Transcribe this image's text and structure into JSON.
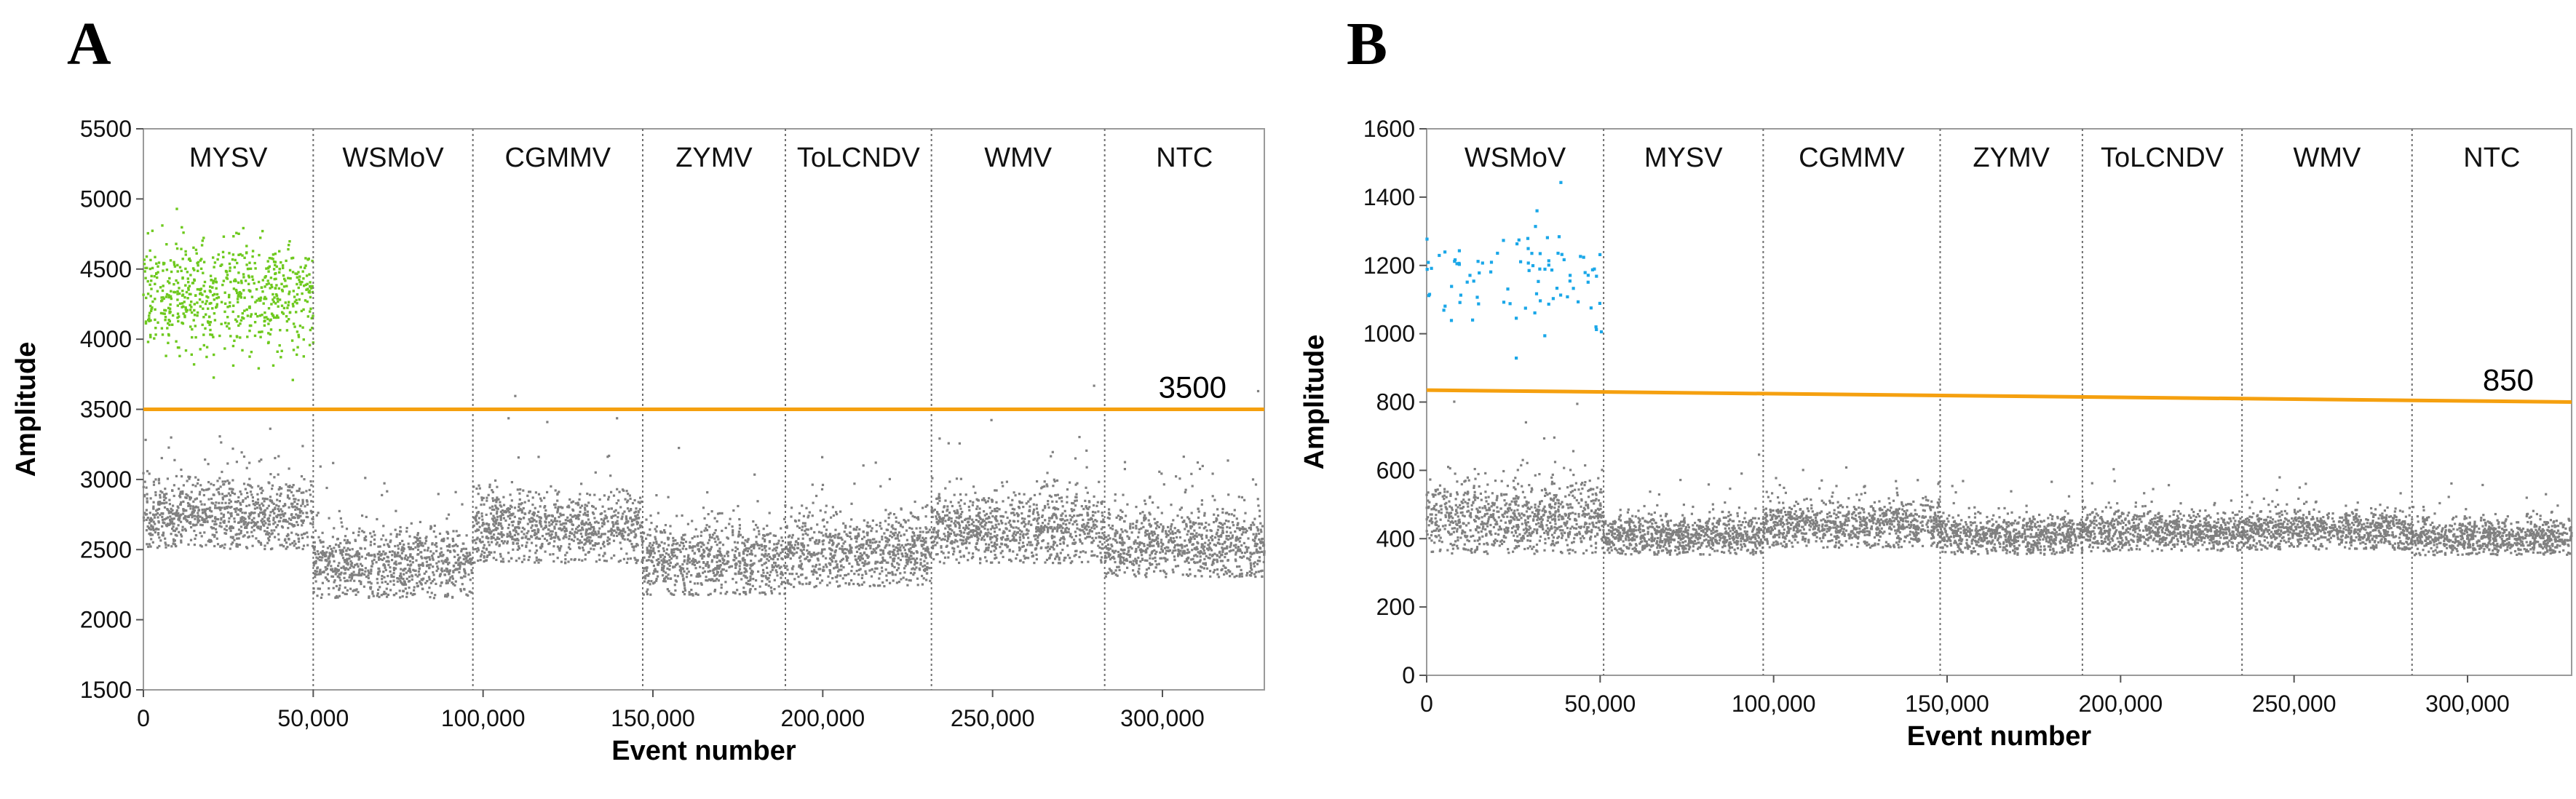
{
  "chart_data": [
    {
      "type": "scatter",
      "panel_label": "A",
      "xlabel": "Event number",
      "ylabel": "Amplitude",
      "xlim": [
        0,
        330000
      ],
      "ylim": [
        1500,
        5500
      ],
      "x_ticks": [
        0,
        50000,
        100000,
        150000,
        200000,
        250000,
        300000
      ],
      "x_tick_labels": [
        "0",
        "50,000",
        "100,000",
        "150,000",
        "200,000",
        "250,000",
        "300,000"
      ],
      "y_ticks": [
        1500,
        2000,
        2500,
        3000,
        3500,
        4000,
        4500,
        5000,
        5500
      ],
      "y_tick_labels": [
        "1500",
        "2000",
        "2500",
        "3000",
        "3500",
        "4000",
        "4500",
        "5000",
        "5500"
      ],
      "threshold": {
        "value": 3500,
        "label": "3500",
        "start": 3500,
        "end": 3500,
        "color": "#f5a00f"
      },
      "positive_color": "#6ec91e",
      "negative_color": "#808080",
      "samples": [
        {
          "name": "MYSV",
          "start": 0,
          "end": 50000,
          "negative_mean": 2750,
          "negative_spread": 130,
          "positive_mean": 4320,
          "positive_spread": 190,
          "positive_fraction": 0.45
        },
        {
          "name": "WSMoV",
          "start": 50000,
          "end": 97000,
          "negative_mean": 2400,
          "negative_spread": 130,
          "positive_mean": null
        },
        {
          "name": "CGMMV",
          "start": 97000,
          "end": 147000,
          "negative_mean": 2650,
          "negative_spread": 130,
          "positive_mean": null
        },
        {
          "name": "ZYMV",
          "start": 147000,
          "end": 189000,
          "negative_mean": 2420,
          "negative_spread": 130,
          "positive_mean": null
        },
        {
          "name": "ToLCNDV",
          "start": 189000,
          "end": 232000,
          "negative_mean": 2480,
          "negative_spread": 130,
          "positive_mean": null
        },
        {
          "name": "WMV",
          "start": 232000,
          "end": 283000,
          "negative_mean": 2650,
          "negative_spread": 130,
          "positive_mean": null
        },
        {
          "name": "NTC",
          "start": 283000,
          "end": 330000,
          "negative_mean": 2550,
          "negative_spread": 130,
          "positive_mean": null
        }
      ]
    },
    {
      "type": "scatter",
      "panel_label": "B",
      "xlabel": "Event number",
      "ylabel": "Amplitude",
      "xlim": [
        0,
        330000
      ],
      "ylim": [
        0,
        1600
      ],
      "x_ticks": [
        0,
        50000,
        100000,
        150000,
        200000,
        250000,
        300000
      ],
      "x_tick_labels": [
        "0",
        "50,000",
        "100,000",
        "150,000",
        "200,000",
        "250,000",
        "300,000"
      ],
      "y_ticks": [
        0,
        200,
        400,
        600,
        800,
        1000,
        1200,
        1400,
        1600
      ],
      "y_tick_labels": [
        "0",
        "200",
        "400",
        "600",
        "800",
        "1000",
        "1200",
        "1400",
        "1600"
      ],
      "threshold": {
        "value": 850,
        "label": "850",
        "start": 835,
        "end": 800,
        "color": "#f5a00f"
      },
      "positive_color": "#1aa7e8",
      "negative_color": "#808080",
      "samples": [
        {
          "name": "WSMoV",
          "start": 0,
          "end": 51000,
          "negative_mean": 460,
          "negative_spread": 55,
          "positive_mean": 1160,
          "positive_spread": 75,
          "positive_count": 90
        },
        {
          "name": "MYSV",
          "start": 51000,
          "end": 97000,
          "negative_mean": 410,
          "negative_spread": 30,
          "positive_mean": null
        },
        {
          "name": "CGMMV",
          "start": 97000,
          "end": 148000,
          "negative_mean": 440,
          "negative_spread": 35,
          "positive_mean": null
        },
        {
          "name": "ZYMV",
          "start": 148000,
          "end": 189000,
          "negative_mean": 410,
          "negative_spread": 30,
          "positive_mean": null
        },
        {
          "name": "ToLCNDV",
          "start": 189000,
          "end": 235000,
          "negative_mean": 420,
          "negative_spread": 30,
          "positive_mean": null
        },
        {
          "name": "WMV",
          "start": 235000,
          "end": 284000,
          "negative_mean": 425,
          "negative_spread": 30,
          "positive_mean": null
        },
        {
          "name": "NTC",
          "start": 284000,
          "end": 330000,
          "negative_mean": 405,
          "negative_spread": 28,
          "positive_mean": null
        }
      ]
    }
  ]
}
